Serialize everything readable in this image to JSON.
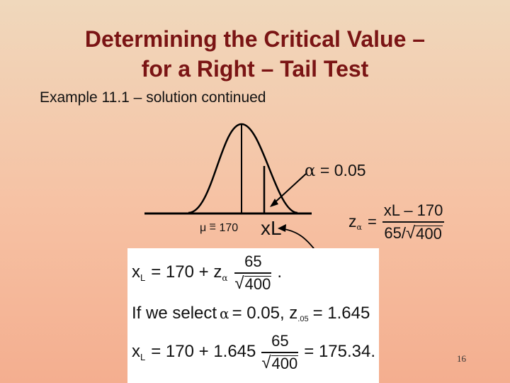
{
  "slide": {
    "title_line1": "Determining the Critical Value –",
    "title_line2": "for a Right – Tail Test",
    "subtitle": "Example 11.1 – solution continued",
    "page_number": "16"
  },
  "figure": {
    "alpha_symbol": "α",
    "alpha_text": " = 0.05",
    "mu_label": "μ = 170",
    "xl_label": "xL"
  },
  "z_formula": {
    "z": "z",
    "z_sub": "α",
    "equals": "=",
    "numerator": "xL – 170",
    "denominator_left": "65",
    "denominator_sqrt": "400"
  },
  "calc": {
    "line1": {
      "lhs": "x",
      "lhs_sub": "L",
      "eq": "= 170 + z",
      "z_sub": "α",
      "frac_num": "65",
      "frac_den": "400",
      "tail": "."
    },
    "line2": {
      "text": "If we select",
      "alpha": "α",
      "eq": "= 0.05, z",
      "z_sub": ".05",
      "tail": "= 1.645"
    },
    "line3": {
      "lhs": "x",
      "lhs_sub": "L",
      "eq": "= 170 + 1.645",
      "frac_num": "65",
      "frac_den": "400",
      "tail": "= 175.34."
    }
  }
}
